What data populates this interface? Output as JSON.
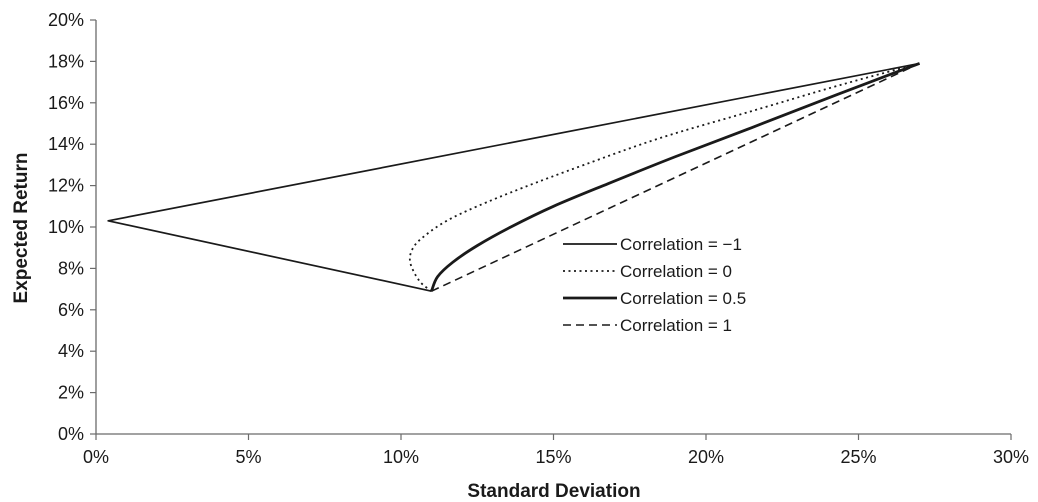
{
  "chart_data": {
    "type": "line",
    "title": "",
    "xlabel": "Standard Deviation",
    "ylabel": "Expected Return",
    "xlim": [
      0,
      30
    ],
    "ylim": [
      0,
      20
    ],
    "x_ticks": [
      0,
      5,
      10,
      15,
      20,
      25,
      30
    ],
    "y_ticks": [
      0,
      2,
      4,
      6,
      8,
      10,
      12,
      14,
      16,
      18,
      20
    ],
    "x_tick_labels": [
      "0%",
      "5%",
      "10%",
      "15%",
      "20%",
      "25%",
      "30%"
    ],
    "y_tick_labels": [
      "0%",
      "2%",
      "4%",
      "6%",
      "8%",
      "10%",
      "12%",
      "14%",
      "16%",
      "18%",
      "20%"
    ],
    "grid": false,
    "legend_position": "center-right",
    "series": [
      {
        "name": "Correlation = −1",
        "style": "solid",
        "color": "#1a1a1a",
        "x": [
          27.0,
          0.4,
          11.0
        ],
        "y": [
          17.9,
          10.3,
          6.9
        ]
      },
      {
        "name": "Correlation = 0",
        "style": "dotted",
        "color": "#1a1a1a",
        "x": [
          11.0,
          10.6,
          10.3,
          10.4,
          10.8,
          11.5,
          12.5,
          14.0,
          16.0,
          18.5,
          21.5,
          24.5,
          27.0
        ],
        "y": [
          6.9,
          7.4,
          8.3,
          9.0,
          9.6,
          10.3,
          11.0,
          11.9,
          13.0,
          14.3,
          15.6,
          16.9,
          17.9
        ]
      },
      {
        "name": "Correlation = 0.5",
        "style": "solid-thick",
        "color": "#1a1a1a",
        "x": [
          11.0,
          11.2,
          11.7,
          12.5,
          13.6,
          15.0,
          16.8,
          19.0,
          21.5,
          24.3,
          27.0
        ],
        "y": [
          6.9,
          7.6,
          8.3,
          9.1,
          10.0,
          11.0,
          12.1,
          13.4,
          14.8,
          16.4,
          17.9
        ]
      },
      {
        "name": "Correlation = 1",
        "style": "dashed",
        "color": "#1a1a1a",
        "x": [
          11.0,
          27.0
        ],
        "y": [
          6.9,
          17.9
        ]
      }
    ]
  }
}
